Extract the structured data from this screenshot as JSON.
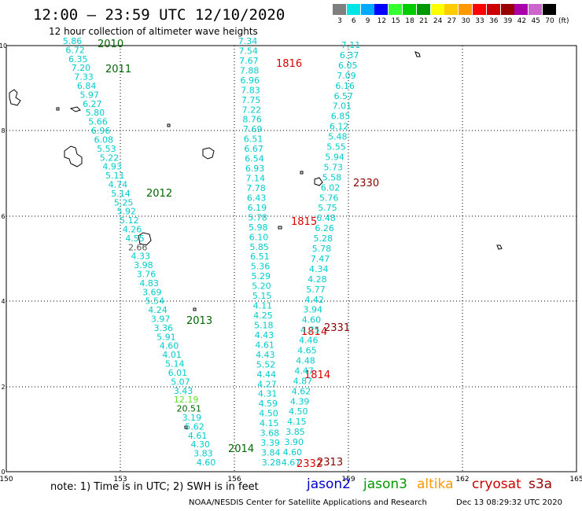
{
  "header": {
    "title": "12:00 – 23:59 UTC 12/10/2020",
    "subtitle": "12 hour collection of altimeter wave heights"
  },
  "legend": {
    "unit": "(ft)",
    "bins": [
      {
        "label": "3",
        "color": "#7f7f7f"
      },
      {
        "label": "6",
        "color": "#00e5e5"
      },
      {
        "label": "9",
        "color": "#00aaff"
      },
      {
        "label": "12",
        "color": "#0000ff"
      },
      {
        "label": "15",
        "color": "#33ff33"
      },
      {
        "label": "18",
        "color": "#00cc00"
      },
      {
        "label": "21",
        "color": "#009900"
      },
      {
        "label": "24",
        "color": "#ffff00"
      },
      {
        "label": "27",
        "color": "#ffcc00"
      },
      {
        "label": "30",
        "color": "#ff9900"
      },
      {
        "label": "33",
        "color": "#ff0000"
      },
      {
        "label": "36",
        "color": "#cc0000"
      },
      {
        "label": "39",
        "color": "#990000"
      },
      {
        "label": "42",
        "color": "#aa00aa"
      },
      {
        "label": "45",
        "color": "#cc66cc"
      },
      {
        "label": "70",
        "color": "#000000"
      }
    ]
  },
  "axes": {
    "x_ticks": [
      "150",
      "153",
      "156",
      "159",
      "162",
      "165"
    ],
    "y_ticks": [
      "0",
      "2",
      "4",
      "6",
      "8",
      "10"
    ]
  },
  "tracks": [
    {
      "values": [
        "5.86",
        "6.72",
        "6.35",
        "7.20",
        "7.33",
        "6.84",
        "5.97",
        "6.27",
        "5.80",
        "5.66",
        "6.96",
        "6.08",
        "5.53",
        "5.22",
        "4.93",
        "5.11",
        "4.74",
        "5.14",
        "5.25",
        "5.92",
        "5.12",
        "4.26",
        "4.55",
        "2.66",
        "4.33",
        "3.98",
        "3.76",
        "4.83",
        "3.69",
        "5.54",
        "4.24",
        "3.97",
        "3.36",
        "5.91",
        "4.60",
        "4.01",
        "5.14",
        "6.01",
        "5.07",
        "3.43",
        "12.19",
        "20.51",
        "3.19",
        "5.62",
        "4.61",
        "4.30",
        "3.83",
        "4.60"
      ],
      "times": [
        "2010",
        "2011",
        "2012",
        "2013",
        "2014"
      ]
    },
    {
      "values": [
        "7.34",
        "7.54",
        "7.67",
        "7.88",
        "6.96",
        "7.83",
        "7.75",
        "7.22",
        "8.76",
        "7.69",
        "6.51",
        "6.67",
        "6.54",
        "6.93",
        "7.14",
        "7.78",
        "6.43",
        "6.19",
        "5.78",
        "5.98",
        "6.10",
        "5.85",
        "6.51",
        "5.36",
        "5.29",
        "5.20",
        "5.15",
        "4.11",
        "4.25",
        "5.18",
        "4.43",
        "4.61",
        "4.43",
        "5.52",
        "4.44",
        "4.27",
        "4.31",
        "4.59",
        "4.50",
        "4.15",
        "3.68",
        "3.39",
        "3.84",
        "3.28"
      ],
      "times": [
        "1816",
        "1815",
        "1814",
        "1814",
        "2332"
      ]
    },
    {
      "values": [
        "7.11",
        "6.37",
        "6.05",
        "7.09",
        "6.16",
        "6.57",
        "7.01",
        "6.85",
        "6.12",
        "5.48",
        "5.55",
        "5.94",
        "5.73",
        "5.58",
        "6.02",
        "5.76",
        "5.75",
        "6.48",
        "6.26",
        "5.28",
        "5.78",
        "7.47",
        "4.34",
        "4.28",
        "5.77",
        "4.42",
        "3.94",
        "4.60",
        "4.75",
        "4.46",
        "4.65",
        "4.48",
        "4.47",
        "4.87",
        "4.62",
        "4.39",
        "4.50",
        "4.15",
        "3.85",
        "3.90",
        "4.60",
        "4.67"
      ],
      "times": [
        "2330",
        "2331",
        "2313"
      ]
    }
  ],
  "footer": {
    "note": "note: 1) Time is in UTC; 2) SWH is in feet",
    "satellites": [
      {
        "name": "jason2",
        "color": "#0000cc"
      },
      {
        "name": "jason3",
        "color": "#009900"
      },
      {
        "name": "altika",
        "color": "#ff9900"
      },
      {
        "name": "cryosat",
        "color": "#cc0000"
      },
      {
        "name": "s3a",
        "color": "#990000"
      }
    ],
    "credit": "NOAA/NESDIS Center for Satellite Applications and Research",
    "timestamp": "Dec 13 08:29:32 UTC 2020"
  }
}
